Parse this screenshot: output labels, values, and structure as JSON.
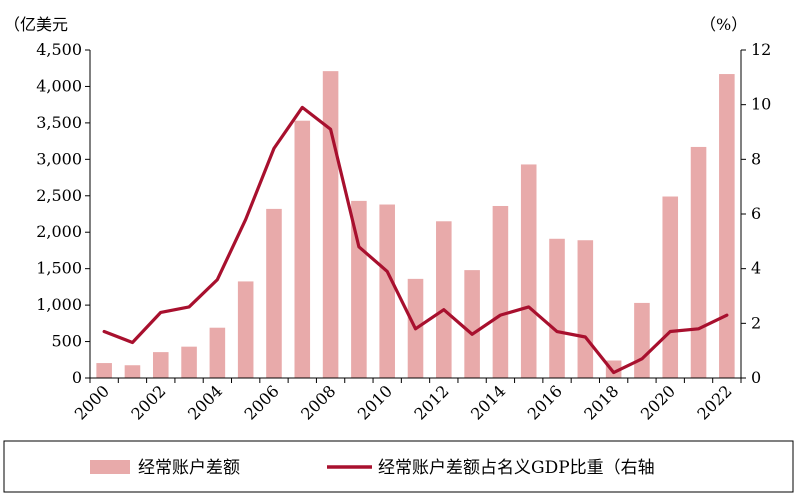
{
  "chart_data": {
    "type": "bar+line",
    "title": "",
    "categories": [
      "2000",
      "2001",
      "2002",
      "2003",
      "2004",
      "2005",
      "2006",
      "2007",
      "2008",
      "2009",
      "2010",
      "2011",
      "2012",
      "2013",
      "2014",
      "2015",
      "2016",
      "2017",
      "2018",
      "2019",
      "2020",
      "2021",
      "2022"
    ],
    "x_tick_labels": [
      "2000",
      "2002",
      "2004",
      "2006",
      "2008",
      "2010",
      "2012",
      "2014",
      "2016",
      "2018",
      "2020",
      "2022"
    ],
    "left_axis": {
      "unit": "（亿美元",
      "range": [
        0,
        4500
      ],
      "ticks": [
        0,
        500,
        1000,
        1500,
        2000,
        2500,
        3000,
        3500,
        4000,
        4500
      ],
      "tick_labels": [
        "0",
        "500",
        "1,000",
        "1,500",
        "2,000",
        "2,500",
        "3,000",
        "3,500",
        "4,000",
        "4,500"
      ]
    },
    "right_axis": {
      "unit": "（%）",
      "range": [
        0,
        12
      ],
      "ticks": [
        0,
        2,
        4,
        6,
        8,
        10,
        12
      ],
      "tick_labels": [
        "0",
        "2",
        "4",
        "6",
        "8",
        "10",
        "12"
      ]
    },
    "series": [
      {
        "name": "经常账户差额",
        "type": "bar",
        "axis": "left",
        "color": "#e8aaaa",
        "values": [
          205,
          175,
          355,
          430,
          690,
          1325,
          2320,
          3530,
          4210,
          2430,
          2380,
          1360,
          2150,
          1480,
          2360,
          2930,
          1910,
          1890,
          240,
          1030,
          2490,
          3170,
          4170
        ]
      },
      {
        "name": "经常账户差额占名义GDP比重（右轴",
        "type": "line",
        "axis": "right",
        "color": "#a8102e",
        "values": [
          1.7,
          1.3,
          2.4,
          2.6,
          3.6,
          5.8,
          8.4,
          9.9,
          9.1,
          4.8,
          3.9,
          1.8,
          2.5,
          1.6,
          2.3,
          2.6,
          1.7,
          1.5,
          0.2,
          0.7,
          1.7,
          1.8,
          2.3
        ]
      }
    ],
    "grid": false,
    "legend_position": "bottom"
  }
}
